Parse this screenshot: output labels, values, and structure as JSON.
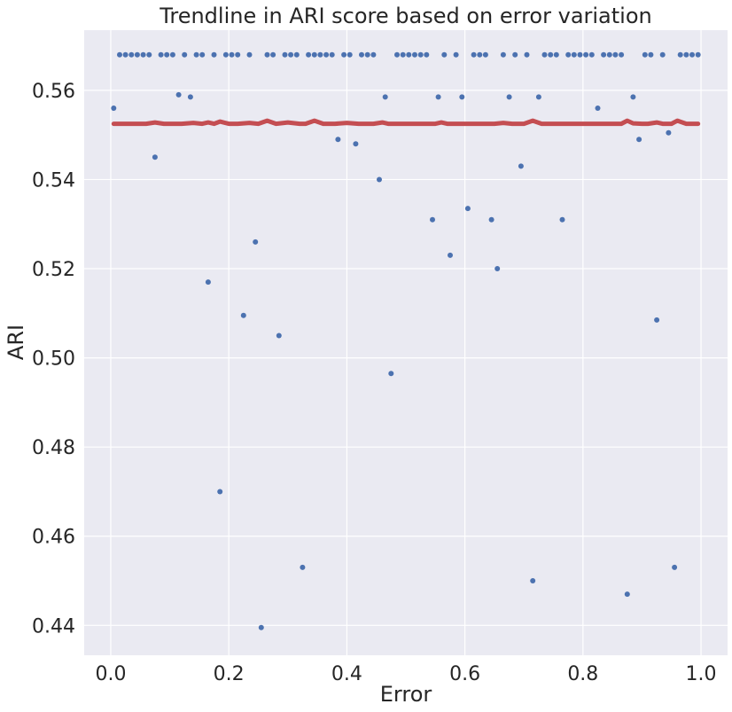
{
  "chart_data": {
    "type": "scatter",
    "title": "Trendline in ARI score based on error variation",
    "xlabel": "Error",
    "ylabel": "ARI",
    "xlim": [
      -0.045,
      1.045
    ],
    "ylim": [
      0.4333,
      0.5735
    ],
    "xticks": [
      0.0,
      0.2,
      0.4,
      0.6,
      0.8,
      1.0
    ],
    "xtick_labels": [
      "0.0",
      "0.2",
      "0.4",
      "0.6",
      "0.8",
      "1.0"
    ],
    "yticks": [
      0.44,
      0.46,
      0.48,
      0.5,
      0.52,
      0.54,
      0.56
    ],
    "ytick_labels": [
      "0.44",
      "0.46",
      "0.48",
      "0.50",
      "0.52",
      "0.54",
      "0.56"
    ],
    "grid": true,
    "background": "#eaeaf2",
    "colors": {
      "points": "#4c72b0",
      "trend": "#c44e52",
      "grid": "#ffffff"
    },
    "series": [
      {
        "kind": "scatter",
        "x": [
          0.005,
          0.015,
          0.025,
          0.035,
          0.045,
          0.055,
          0.065,
          0.075,
          0.085,
          0.095,
          0.105,
          0.115,
          0.125,
          0.135,
          0.145,
          0.155,
          0.165,
          0.175,
          0.185,
          0.195,
          0.205,
          0.215,
          0.225,
          0.235,
          0.245,
          0.255,
          0.265,
          0.275,
          0.285,
          0.295,
          0.305,
          0.315,
          0.325,
          0.335,
          0.345,
          0.355,
          0.365,
          0.375,
          0.385,
          0.395,
          0.405,
          0.415,
          0.425,
          0.435,
          0.445,
          0.455,
          0.465,
          0.475,
          0.485,
          0.495,
          0.505,
          0.515,
          0.525,
          0.535,
          0.545,
          0.555,
          0.565,
          0.575,
          0.585,
          0.595,
          0.605,
          0.615,
          0.625,
          0.635,
          0.645,
          0.655,
          0.665,
          0.675,
          0.685,
          0.695,
          0.705,
          0.715,
          0.725,
          0.735,
          0.745,
          0.755,
          0.765,
          0.775,
          0.785,
          0.795,
          0.805,
          0.815,
          0.825,
          0.835,
          0.845,
          0.855,
          0.865,
          0.875,
          0.885,
          0.895,
          0.905,
          0.915,
          0.925,
          0.935,
          0.945,
          0.955,
          0.965,
          0.975,
          0.985,
          0.995
        ],
        "y": [
          0.556,
          0.568,
          0.568,
          0.568,
          0.568,
          0.568,
          0.568,
          0.545,
          0.568,
          0.568,
          0.568,
          0.559,
          0.568,
          0.5585,
          0.568,
          0.568,
          0.517,
          0.568,
          0.47,
          0.568,
          0.568,
          0.568,
          0.5095,
          0.568,
          0.526,
          0.4395,
          0.568,
          0.568,
          0.505,
          0.568,
          0.568,
          0.568,
          0.453,
          0.568,
          0.568,
          0.568,
          0.568,
          0.568,
          0.549,
          0.568,
          0.568,
          0.548,
          0.568,
          0.568,
          0.568,
          0.54,
          0.5585,
          0.4965,
          0.568,
          0.568,
          0.568,
          0.568,
          0.568,
          0.568,
          0.531,
          0.5585,
          0.568,
          0.523,
          0.568,
          0.5585,
          0.5335,
          0.568,
          0.568,
          0.568,
          0.531,
          0.52,
          0.568,
          0.5585,
          0.568,
          0.543,
          0.568,
          0.45,
          0.5585,
          0.568,
          0.568,
          0.568,
          0.531,
          0.568,
          0.568,
          0.568,
          0.568,
          0.568,
          0.556,
          0.568,
          0.568,
          0.568,
          0.568,
          0.447,
          0.5585,
          0.549,
          0.568,
          0.568,
          0.5085,
          0.568,
          0.5505,
          0.453,
          0.568,
          0.568,
          0.568,
          0.568
        ]
      },
      {
        "kind": "line",
        "x": [
          0.005,
          0.03,
          0.06,
          0.075,
          0.09,
          0.12,
          0.14,
          0.155,
          0.165,
          0.175,
          0.185,
          0.2,
          0.215,
          0.235,
          0.25,
          0.265,
          0.28,
          0.3,
          0.32,
          0.33,
          0.345,
          0.36,
          0.38,
          0.4,
          0.42,
          0.445,
          0.46,
          0.47,
          0.5,
          0.55,
          0.56,
          0.57,
          0.6,
          0.65,
          0.665,
          0.68,
          0.7,
          0.715,
          0.73,
          0.75,
          0.8,
          0.85,
          0.865,
          0.875,
          0.885,
          0.9,
          0.91,
          0.925,
          0.935,
          0.95,
          0.96,
          0.975,
          0.995
        ],
        "y": [
          0.5525,
          0.5525,
          0.5525,
          0.5528,
          0.5525,
          0.5525,
          0.5527,
          0.5525,
          0.5528,
          0.5525,
          0.553,
          0.5525,
          0.5525,
          0.5527,
          0.5525,
          0.5532,
          0.5525,
          0.5528,
          0.5525,
          0.5525,
          0.5532,
          0.5525,
          0.5525,
          0.5527,
          0.5525,
          0.5525,
          0.5528,
          0.5525,
          0.5525,
          0.5525,
          0.5528,
          0.5525,
          0.5525,
          0.5525,
          0.5527,
          0.5525,
          0.5525,
          0.5532,
          0.5525,
          0.5525,
          0.5525,
          0.5525,
          0.5525,
          0.5532,
          0.5526,
          0.5525,
          0.5525,
          0.5528,
          0.5525,
          0.5525,
          0.5532,
          0.5525,
          0.5525
        ]
      }
    ]
  }
}
